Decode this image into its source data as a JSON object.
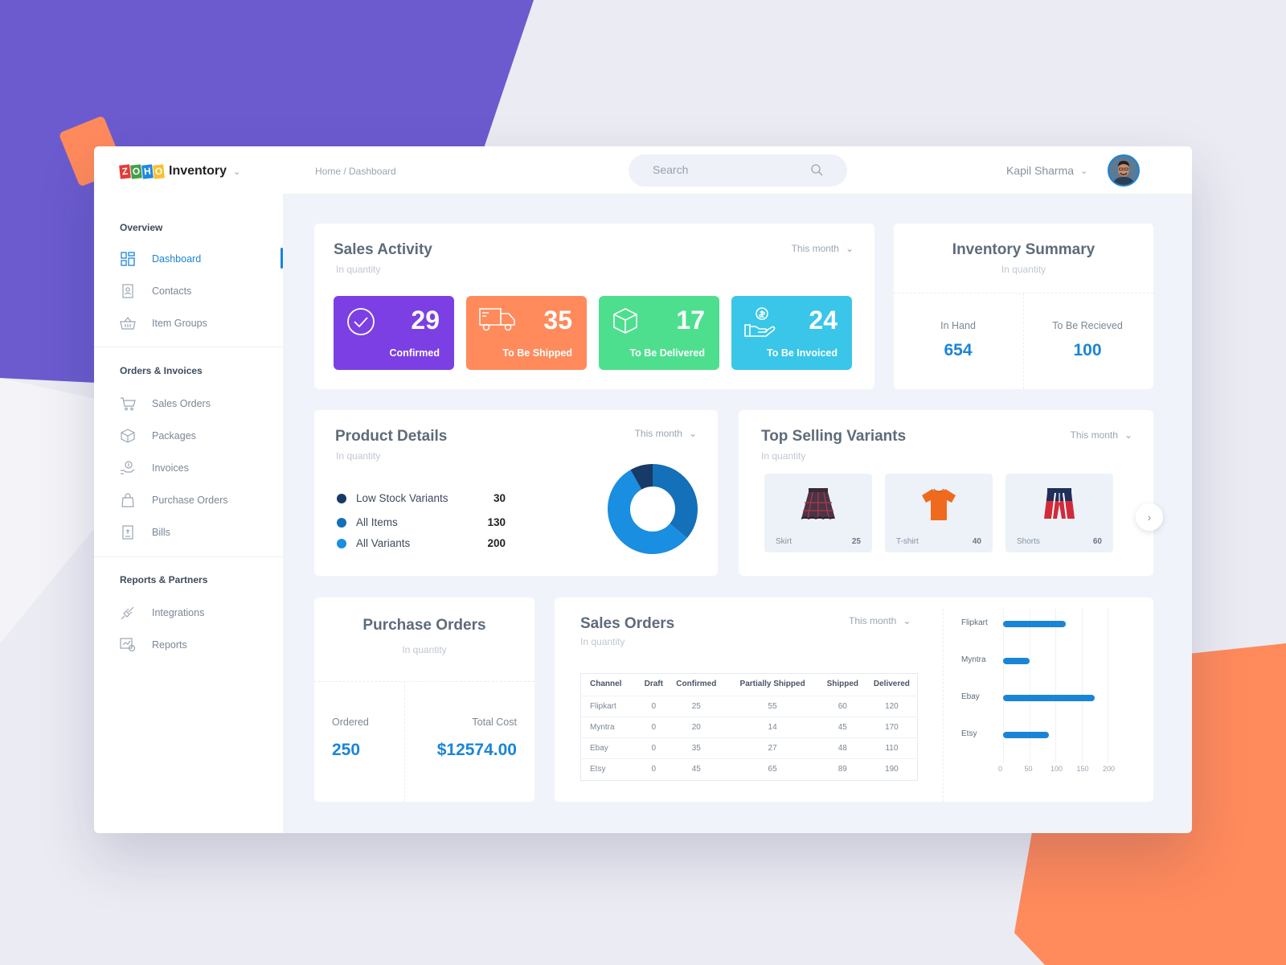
{
  "app": {
    "brand": "Inventory",
    "zoho_letters": [
      "Z",
      "O",
      "H",
      "O"
    ]
  },
  "sidebar": {
    "sections": [
      {
        "title": "Overview",
        "items": [
          {
            "label": "Dashboard",
            "icon": "dashboard-icon",
            "active": true
          },
          {
            "label": "Contacts",
            "icon": "contacts-icon"
          },
          {
            "label": "Item Groups",
            "icon": "basket-icon"
          }
        ]
      },
      {
        "title": "Orders & Invoices",
        "items": [
          {
            "label": "Sales Orders",
            "icon": "cart-icon"
          },
          {
            "label": "Packages",
            "icon": "package-icon"
          },
          {
            "label": "Invoices",
            "icon": "invoice-icon"
          },
          {
            "label": "Purchase Orders",
            "icon": "bag-icon"
          },
          {
            "label": "Bills",
            "icon": "bill-icon"
          }
        ]
      },
      {
        "title": "Reports & Partners",
        "items": [
          {
            "label": "Integrations",
            "icon": "plug-icon"
          },
          {
            "label": "Reports",
            "icon": "reports-icon"
          }
        ]
      }
    ]
  },
  "topbar": {
    "breadcrumb": "Home / Dashboard",
    "search_placeholder": "Search",
    "user_name": "Kapil Sharma"
  },
  "sales_activity": {
    "title": "Sales Activity",
    "subtitle": "In quantity",
    "period": "This month",
    "stats": [
      {
        "value": "29",
        "label": "Confirmed",
        "color": "#7b3fe4",
        "icon": "check-circle-icon"
      },
      {
        "value": "35",
        "label": "To Be Shipped",
        "color": "#ff8a5c",
        "icon": "truck-icon"
      },
      {
        "value": "17",
        "label": "To Be Delivered",
        "color": "#4ddf8e",
        "icon": "box-icon"
      },
      {
        "value": "24",
        "label": "To Be Invoiced",
        "color": "#39c6e8",
        "icon": "dollar-hand-icon"
      }
    ]
  },
  "inventory_summary": {
    "title": "Inventory Summary",
    "subtitle": "In quantity",
    "in_hand_label": "In Hand",
    "in_hand_value": "654",
    "to_receive_label": "To Be Recieved",
    "to_receive_value": "100"
  },
  "product_details": {
    "title": "Product Details",
    "subtitle": "In quantity",
    "period": "This month",
    "legend": [
      {
        "name": "Low Stock Variants",
        "value": "30",
        "color": "#173a66"
      },
      {
        "name": "All Items",
        "value": "130",
        "color": "#1470b8"
      },
      {
        "name": "All Variants",
        "value": "200",
        "color": "#1a8ee0"
      }
    ]
  },
  "top_selling": {
    "title": "Top Selling Variants",
    "subtitle": "In quantity",
    "period": "This month",
    "items": [
      {
        "name": "Skirt",
        "value": "25"
      },
      {
        "name": "T-shirt",
        "value": "40"
      },
      {
        "name": "Shorts",
        "value": "60"
      }
    ]
  },
  "purchase_orders": {
    "title": "Purchase Orders",
    "subtitle": "In quantity",
    "ordered_label": "Ordered",
    "ordered_value": "250",
    "cost_label": "Total Cost",
    "cost_value": "$12574.00"
  },
  "sales_orders": {
    "title": "Sales Orders",
    "subtitle": "In quantity",
    "period": "This month",
    "columns": [
      "Channel",
      "Draft",
      "Confirmed",
      "Partially Shipped",
      "Shipped",
      "Delivered"
    ],
    "rows": [
      [
        "Flipkart",
        "0",
        "25",
        "55",
        "60",
        "120"
      ],
      [
        "Myntra",
        "0",
        "20",
        "14",
        "45",
        "170"
      ],
      [
        "Ebay",
        "0",
        "35",
        "27",
        "48",
        "110"
      ],
      [
        "Etsy",
        "0",
        "45",
        "65",
        "89",
        "190"
      ]
    ]
  },
  "chart_data": {
    "type": "bar",
    "orientation": "horizontal",
    "categories": [
      "Flipkart",
      "Myntra",
      "Ebay",
      "Etsy"
    ],
    "values": [
      120,
      50,
      175,
      88
    ],
    "xlim": [
      0,
      200
    ],
    "xticks": [
      "0",
      "50",
      "100",
      "150",
      "200"
    ],
    "color": "#1a85d6",
    "grid": true
  }
}
